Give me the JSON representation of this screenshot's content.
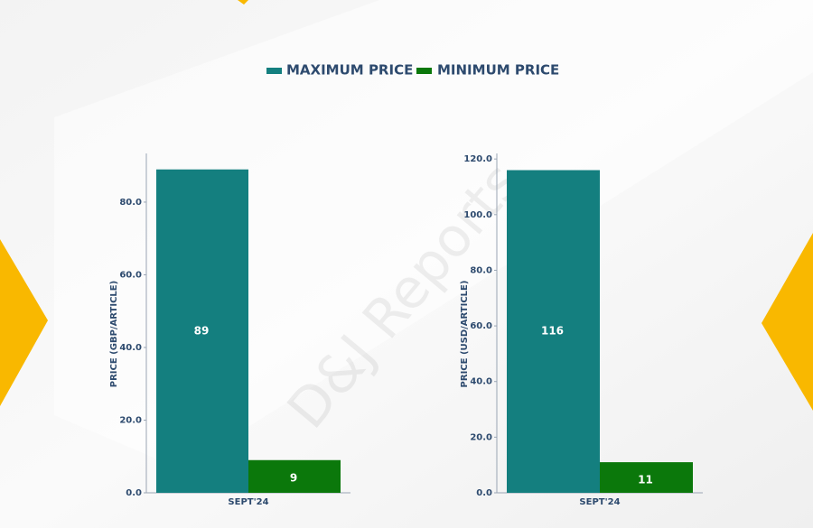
{
  "watermark": "D&J Reports",
  "chart_data": [
    {
      "type": "bar",
      "y_label": "PRICE (GBP/ARTICLE)",
      "categories": [
        "SEPT'24"
      ],
      "series": [
        {
          "name": "MAXIMUM PRICE",
          "color": "#147f7f",
          "values": [
            89
          ]
        },
        {
          "name": "MINIMUM PRICE",
          "color": "#0b780b",
          "values": [
            9
          ]
        }
      ],
      "ylim": [
        0,
        93.4
      ],
      "yticks": [
        {
          "value": 0,
          "label": "0.0"
        },
        {
          "value": 20,
          "label": "20.0"
        },
        {
          "value": 40,
          "label": "40.0"
        },
        {
          "value": 60,
          "label": "60.0"
        },
        {
          "value": 80,
          "label": "80.0"
        }
      ],
      "grid": false
    },
    {
      "type": "bar",
      "y_label": "PRICE (USD/ARTICLE)",
      "categories": [
        "SEPT'24"
      ],
      "series": [
        {
          "name": "MAXIMUM PRICE",
          "color": "#147f7f",
          "values": [
            116
          ]
        },
        {
          "name": "MINIMUM PRICE",
          "color": "#0b780b",
          "values": [
            11
          ]
        }
      ],
      "ylim": [
        0,
        122
      ],
      "yticks": [
        {
          "value": 0,
          "label": "0.0"
        },
        {
          "value": 20,
          "label": "20.0"
        },
        {
          "value": 40,
          "label": "40.0"
        },
        {
          "value": 60,
          "label": "60.0"
        },
        {
          "value": 80,
          "label": "80.0"
        },
        {
          "value": 100,
          "label": "100.0"
        },
        {
          "value": 120,
          "label": "120.0"
        }
      ],
      "grid": false
    }
  ]
}
